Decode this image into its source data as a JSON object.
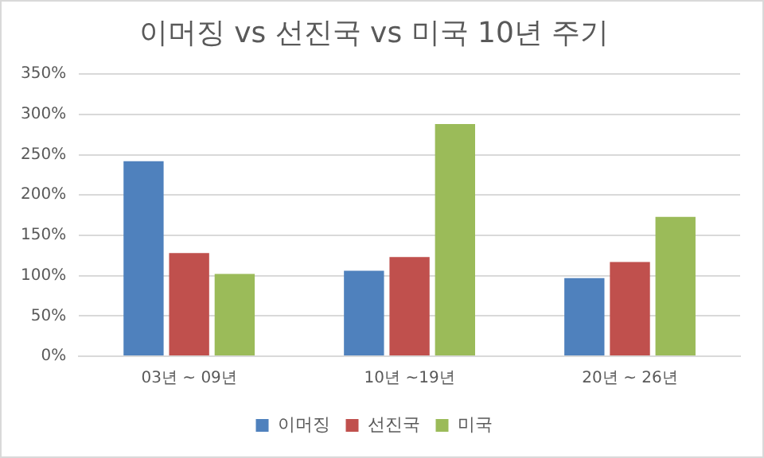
{
  "chart_data": {
    "type": "bar",
    "title": "이머징 vs 선진국 vs 미국 10년 주기",
    "categories": [
      "03년 ~ 09년",
      "10년 ~19년",
      "20년 ~ 26년"
    ],
    "series": [
      {
        "name": "이머징",
        "color": "#4f81bd",
        "values": [
          242,
          106,
          97
        ]
      },
      {
        "name": "선진국",
        "color": "#c0504d",
        "values": [
          128,
          123,
          117
        ]
      },
      {
        "name": "미국",
        "color": "#9bbb59",
        "values": [
          102,
          288,
          173
        ]
      }
    ],
    "ylim": [
      0,
      350
    ],
    "yticks": [
      {
        "value": 0,
        "label": "0%"
      },
      {
        "value": 50,
        "label": "50%"
      },
      {
        "value": 100,
        "label": "100%"
      },
      {
        "value": 150,
        "label": "150%"
      },
      {
        "value": 200,
        "label": "200%"
      },
      {
        "value": 250,
        "label": "250%"
      },
      {
        "value": 300,
        "label": "300%"
      },
      {
        "value": 350,
        "label": "350%"
      }
    ],
    "grid": "y",
    "legend": "bottom"
  }
}
